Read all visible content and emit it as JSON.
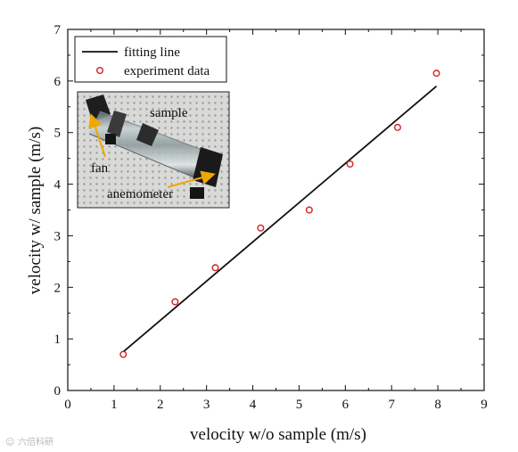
{
  "chart_data": {
    "type": "scatter",
    "xlabel": "velocity w/o sample (m/s)",
    "ylabel": "velocity w/ sample (m/s)",
    "xlim": [
      0,
      9
    ],
    "ylim": [
      0,
      7
    ],
    "x_ticks": [
      0,
      1,
      2,
      3,
      4,
      5,
      6,
      7,
      8,
      9
    ],
    "y_ticks": [
      0,
      1,
      2,
      3,
      4,
      5,
      6,
      7
    ],
    "grid": false,
    "legend_position": "top-left",
    "series": [
      {
        "name": "fitting line",
        "kind": "line",
        "color": "#111111",
        "x": [
          1.2,
          7.97
        ],
        "y": [
          0.75,
          5.9
        ]
      },
      {
        "name": "experiment data",
        "kind": "scatter",
        "marker": "open-circle",
        "color": "#d62020",
        "x": [
          1.2,
          2.32,
          3.19,
          4.17,
          5.22,
          6.1,
          7.13,
          7.97
        ],
        "y": [
          0.7,
          1.72,
          2.38,
          3.15,
          3.5,
          4.39,
          5.1,
          6.15
        ]
      }
    ],
    "inset_photo": {
      "labels": {
        "sample": "sample",
        "fan": "fan",
        "anemometer": "anemometer"
      },
      "arrow_color": "#f0a800"
    }
  },
  "watermark": "六倍科研"
}
